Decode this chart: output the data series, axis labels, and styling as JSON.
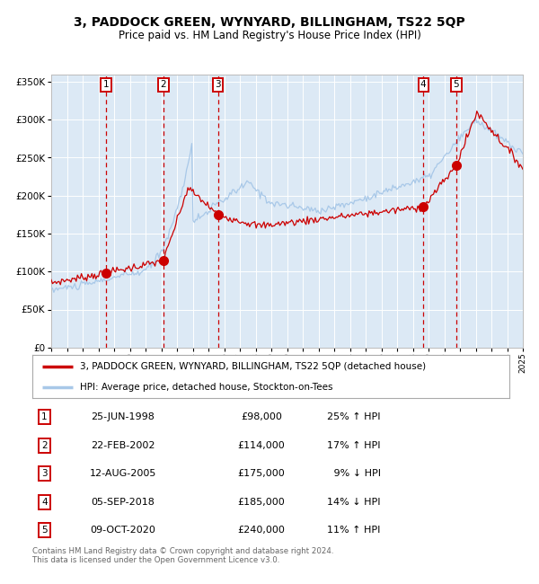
{
  "title": "3, PADDOCK GREEN, WYNYARD, BILLINGHAM, TS22 5QP",
  "subtitle": "Price paid vs. HM Land Registry's House Price Index (HPI)",
  "ylim": [
    0,
    360000
  ],
  "yticks": [
    0,
    50000,
    100000,
    150000,
    200000,
    250000,
    300000,
    350000
  ],
  "ytick_labels": [
    "£0",
    "£50K",
    "£100K",
    "£150K",
    "£200K",
    "£250K",
    "£300K",
    "£350K"
  ],
  "x_start_year": 1995,
  "x_end_year": 2025,
  "bg_color": "#dce9f5",
  "grid_color": "#ffffff",
  "hpi_line_color": "#a8c8e8",
  "price_line_color": "#cc0000",
  "sale_marker_color": "#cc0000",
  "dashed_line_color": "#cc0000",
  "sale_label_border": "#cc0000",
  "sales": [
    {
      "num": 1,
      "year": 1998.48,
      "price": 98000
    },
    {
      "num": 2,
      "year": 2002.14,
      "price": 114000
    },
    {
      "num": 3,
      "year": 2005.61,
      "price": 175000
    },
    {
      "num": 4,
      "year": 2018.67,
      "price": 185000
    },
    {
      "num": 5,
      "year": 2020.77,
      "price": 240000
    }
  ],
  "legend_entries": [
    "3, PADDOCK GREEN, WYNYARD, BILLINGHAM, TS22 5QP (detached house)",
    "HPI: Average price, detached house, Stockton-on-Tees"
  ],
  "table_rows": [
    {
      "num": 1,
      "date": "25-JUN-1998",
      "price": "£98,000",
      "hpi": "25% ↑ HPI"
    },
    {
      "num": 2,
      "date": "22-FEB-2002",
      "price": "£114,000",
      "hpi": "17% ↑ HPI"
    },
    {
      "num": 3,
      "date": "12-AUG-2005",
      "price": "£175,000",
      "hpi": " 9% ↓ HPI"
    },
    {
      "num": 4,
      "date": "05-SEP-2018",
      "price": "£185,000",
      "hpi": "14% ↓ HPI"
    },
    {
      "num": 5,
      "date": "09-OCT-2020",
      "price": "£240,000",
      "hpi": "11% ↑ HPI"
    }
  ],
  "footer": "Contains HM Land Registry data © Crown copyright and database right 2024.\nThis data is licensed under the Open Government Licence v3.0."
}
